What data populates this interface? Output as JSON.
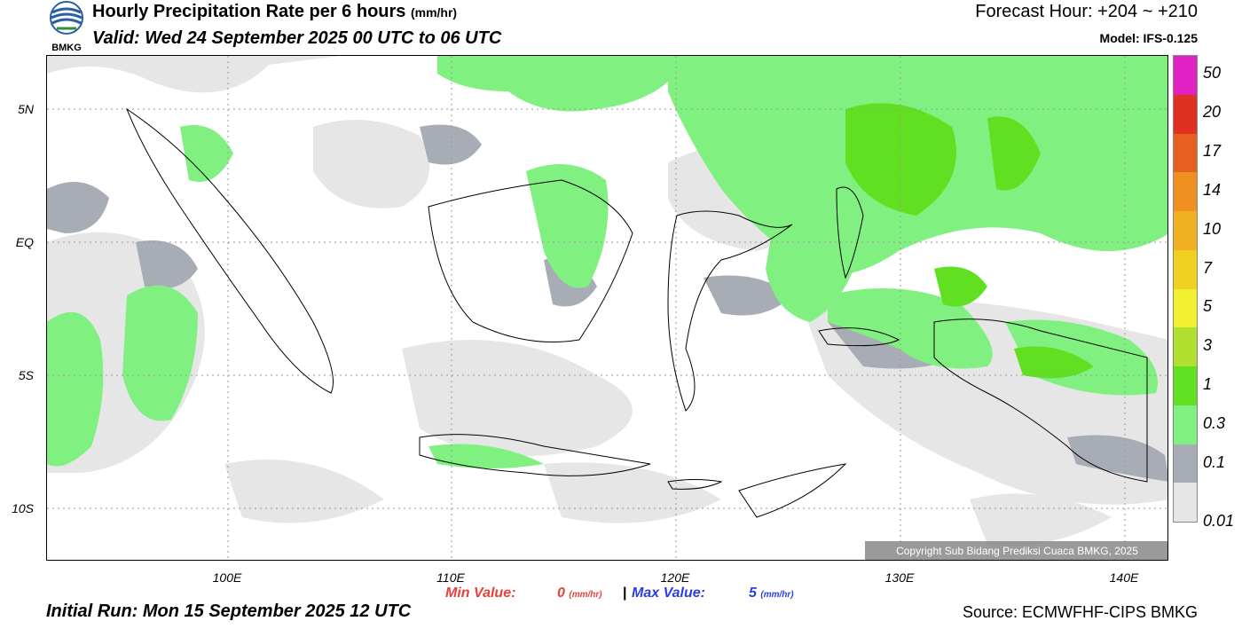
{
  "header": {
    "title": "Hourly Precipitation Rate per 6 hours",
    "title_unit": "(mm/hr)",
    "valid": "Valid: Wed 24 September 2025 00 UTC to 06 UTC",
    "forecast_hour": "Forecast Hour: +204 ~ +210",
    "model": "Model: IFS-0.125",
    "logo_text": "BMKG"
  },
  "map": {
    "lat_labels": [
      "5N",
      "EQ",
      "5S",
      "10S"
    ],
    "lon_labels": [
      "100E",
      "110E",
      "120E",
      "130E",
      "140E"
    ],
    "copyright": "Copyright Sub Bidang Prediksi Cuaca BMKG, 2025"
  },
  "scale": {
    "levels": [
      "50",
      "20",
      "17",
      "14",
      "10",
      "7",
      "5",
      "3",
      "1",
      "0.3",
      "0.1",
      "0.01"
    ],
    "colors": [
      "#e020c0",
      "#e03020",
      "#e86020",
      "#f09020",
      "#f0b020",
      "#f0d020",
      "#f0f030",
      "#b0e030",
      "#60e020",
      "#80f080",
      "#a8acb4",
      "#e6e6e6"
    ]
  },
  "footer": {
    "min_label": "Min Value:",
    "min_value": "0",
    "separator": "|",
    "max_label": "Max Value:",
    "max_value": "5",
    "unit": "(mm/hr)",
    "initial_run": "Initial Run: Mon 15 September 2025 12 UTC",
    "source": "Source: ECMWFHF-CIPS BMKG"
  }
}
